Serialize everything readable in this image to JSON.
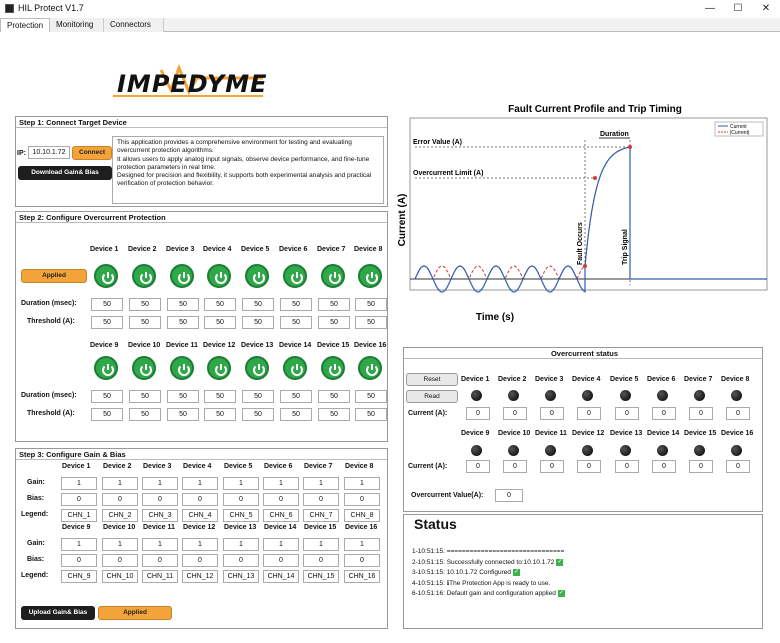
{
  "app": {
    "title": "HIL Protect V1.7",
    "minimize": "—",
    "maximize": "☐",
    "close": "✕"
  },
  "tabs": [
    "Protection",
    "Monitoring",
    "Connectors"
  ],
  "logo": {
    "text": "IMPEDYME"
  },
  "step1": {
    "title": "Step 1: Connect Target Device",
    "ip_label": "IP:",
    "ip_value": "10.10.1.72",
    "connect": "Connect",
    "download": "Download Gain& Bias",
    "description": "This application provides a comprehensive environment for testing and evaluating overcurrent protection algorithms.\nIt allows users to apply analog input signals, observe device performance, and fine-tune protection parameters in real time.\nDesigned for precision and flexibility, it supports both experimental analysis and practical verification of protection behavior."
  },
  "step2": {
    "title": "Step 2: Configure Overcurrent Protection",
    "applied": "Applied",
    "duration_label": "Duration (msec):",
    "threshold_label": "Threshold (A):",
    "devices_row1": [
      "Device 1",
      "Device 2",
      "Device 3",
      "Device 4",
      "Device 5",
      "Device 6",
      "Device 7",
      "Device 8"
    ],
    "devices_row2": [
      "Device 9",
      "Device 10",
      "Device 11",
      "Device 12",
      "Device 13",
      "Device 14",
      "Device 15",
      "Device 16"
    ],
    "durations": [
      "50",
      "50",
      "50",
      "50",
      "50",
      "50",
      "50",
      "50",
      "50",
      "50",
      "50",
      "50",
      "50",
      "50",
      "50",
      "50"
    ],
    "thresholds": [
      "50",
      "50",
      "50",
      "50",
      "50",
      "50",
      "50",
      "50",
      "50",
      "50",
      "50",
      "50",
      "50",
      "50",
      "50",
      "50"
    ]
  },
  "step3": {
    "title": "Step 3: Configure Gain & Bias",
    "gain_label": "Gain:",
    "bias_label": "Bias:",
    "legend_label": "Legend:",
    "devices_row1": [
      "Device 1",
      "Device 2",
      "Device 3",
      "Device 4",
      "Device 5",
      "Device 6",
      "Device 7",
      "Device 8"
    ],
    "devices_row2": [
      "Device 9",
      "Device 10",
      "Device 11",
      "Device 12",
      "Device 13",
      "Device 14",
      "Device 15",
      "Device 16"
    ],
    "gains": [
      "1",
      "1",
      "1",
      "1",
      "1",
      "1",
      "1",
      "1",
      "1",
      "1",
      "1",
      "1",
      "1",
      "1",
      "1",
      "1"
    ],
    "biases": [
      "0",
      "0",
      "0",
      "0",
      "0",
      "0",
      "0",
      "0",
      "0",
      "0",
      "0",
      "0",
      "0",
      "0",
      "0",
      "0"
    ],
    "legends": [
      "CHN_1",
      "CHN_2",
      "CHN_3",
      "CHN_4",
      "CHN_5",
      "CHN_6",
      "CHN_7",
      "CHN_8",
      "CHN_9",
      "CHN_10",
      "CHN_11",
      "CHN_12",
      "CHN_13",
      "CHN_14",
      "CHN_15",
      "CHN_16"
    ],
    "upload": "Upload Gain& Bias",
    "applied": "Applied"
  },
  "chart": {
    "title": "Fault Current Profile and Trip Timing",
    "xlabel": "Time (s)",
    "ylabel": "Current (A)",
    "error_value": "Error Value (A)",
    "overcurrent_limit": "Overcurrent Limit (A)",
    "duration": "Duration",
    "fault_occurs": "Fault Occurs",
    "trip_signal": "Trip Signal",
    "legend": [
      "Current",
      "|Current|"
    ],
    "colors": {
      "current": "#2f5fb0",
      "abs": "#d33a3a"
    }
  },
  "ocs": {
    "title": "Overcurrent status",
    "reset": "Reset",
    "read": "Read",
    "current_label": "Current (A):",
    "devices_row1": [
      "Device 1",
      "Device 2",
      "Device 3",
      "Device 4",
      "Device 5",
      "Device 6",
      "Device 7",
      "Device 8"
    ],
    "devices_row2": [
      "Device 9",
      "Device 10",
      "Device 11",
      "Device 12",
      "Device 13",
      "Device 14",
      "Device 15",
      "Device 16"
    ],
    "currents": [
      "0",
      "0",
      "0",
      "0",
      "0",
      "0",
      "0",
      "0",
      "0",
      "0",
      "0",
      "0",
      "0",
      "0",
      "0",
      "0"
    ],
    "oc_value_label": "Overcurrent Value(A):",
    "oc_value": "0"
  },
  "status": {
    "title": "Status",
    "lines": [
      "1-10:51:15:  ===============================",
      "2-10:51:15:  Successfully connected to:10.10.1.72",
      "3-10:51:15:  10.10.1.72 Configured",
      "4-10:51:15:  ℹThe Protection App is ready to use.",
      "6-10:51:16:  Default gain and configuration applied"
    ],
    "checks": [
      false,
      true,
      true,
      false,
      true
    ]
  }
}
